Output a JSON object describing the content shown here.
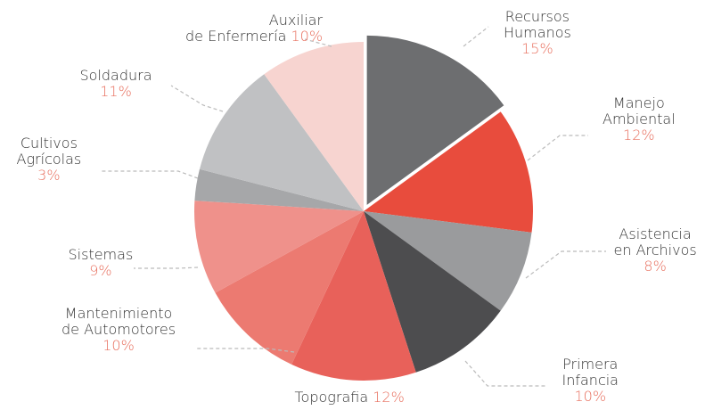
{
  "chart_data": {
    "type": "pie",
    "categories": [
      "Recursos\nHumanos",
      "Manejo\nAmbiental",
      "Asistencia\nen Archivos",
      "Primera\nInfancia",
      "Topografia",
      "Mantenimiento\nde Automotores",
      "Sistemas",
      "Cultivos\nAgrícolas",
      "Soldadura",
      "Auxiliar\nde Enfermería"
    ],
    "values": [
      15,
      12,
      8,
      10,
      12,
      10,
      9,
      3,
      11,
      10
    ],
    "value_labels": [
      "15%",
      "12%",
      "8%",
      "10%",
      "12%",
      "10%",
      "9%",
      "3%",
      "11%",
      "10%"
    ],
    "colors": [
      "#6d6e70",
      "#e84c3d",
      "#9a9b9d",
      "#4d4d4f",
      "#e8615a",
      "#ec7a71",
      "#ef918b",
      "#a6a7a9",
      "#c0c1c3",
      "#f7d4d0"
    ],
    "exploded": [
      0
    ]
  }
}
